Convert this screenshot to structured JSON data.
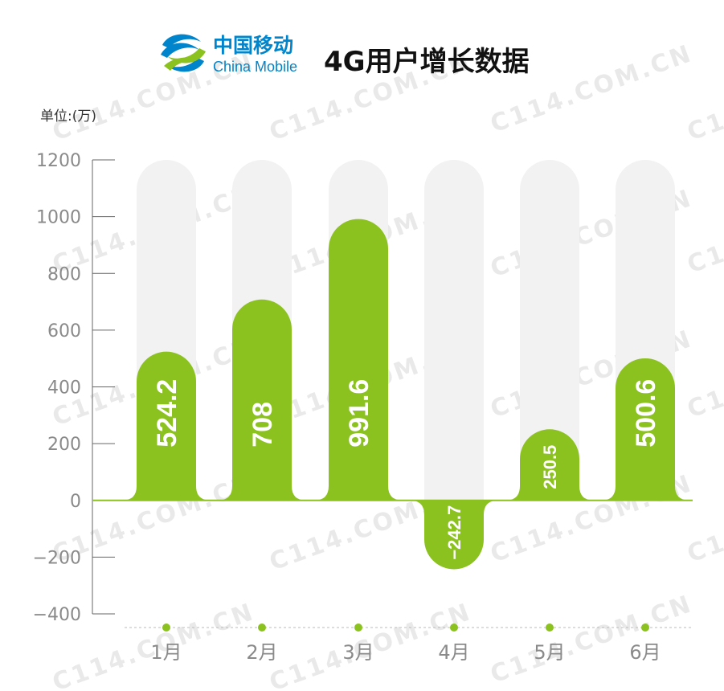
{
  "header": {
    "brand_cn": "中国移动",
    "brand_en": "China Mobile",
    "logo_icon": "china-mobile-logo-icon",
    "logo_color": "#0085cc",
    "logo_accent": "#8cc220"
  },
  "watermark": "C114.COM.CN",
  "chart_data": {
    "type": "bar",
    "title": "4G用户增长数据",
    "unit": "单位:(万)",
    "categories": [
      "1月",
      "2月",
      "3月",
      "4月",
      "5月",
      "6月"
    ],
    "values": [
      524.2,
      708,
      991.6,
      -242.7,
      250.5,
      500.6
    ],
    "value_labels": [
      "524.2",
      "708",
      "991.6",
      "−242.7",
      "250.5",
      "500.6"
    ],
    "yticks": [
      "1200",
      "1000",
      "800",
      "600",
      "400",
      "200",
      "0",
      "−200",
      "−400"
    ],
    "ytick_values": [
      1200,
      1000,
      800,
      600,
      400,
      200,
      0,
      -200,
      -400
    ],
    "ylim": [
      -400,
      1200
    ],
    "background_bar_max": 1200,
    "grid": false,
    "legend": "none",
    "bar_color": "#8cc220",
    "track_color": "#f2f2f2",
    "axis_color": "#666666"
  }
}
